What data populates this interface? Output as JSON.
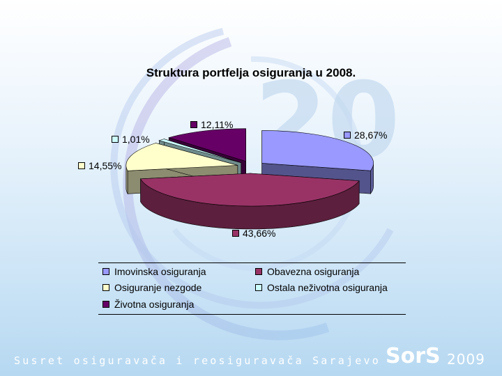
{
  "chart_data": {
    "type": "pie",
    "title": "Struktura portfelja osiguranja u 2008.",
    "slices": [
      {
        "name": "Imovinska osiguranja",
        "value": 28.67,
        "label": "28,67%",
        "color": "#9999ff"
      },
      {
        "name": "Obavezna osiguranja",
        "value": 43.66,
        "label": "43,66%",
        "color": "#993366"
      },
      {
        "name": "Osiguranje nezgode",
        "value": 14.55,
        "label": "14,55%",
        "color": "#ffffcc"
      },
      {
        "name": "Ostala neživotna osiguranja",
        "value": 1.01,
        "label": "1,01%",
        "color": "#ccffff"
      },
      {
        "name": "Životna osiguranja",
        "value": 12.11,
        "label": "12,11%",
        "color": "#660066"
      }
    ],
    "legend_position": "bottom"
  },
  "footer": {
    "text": "Susret osiguravača i reosiguravača Sarajevo",
    "brand": "SorS",
    "year": "2009"
  },
  "background": {
    "logo_number": "20"
  }
}
